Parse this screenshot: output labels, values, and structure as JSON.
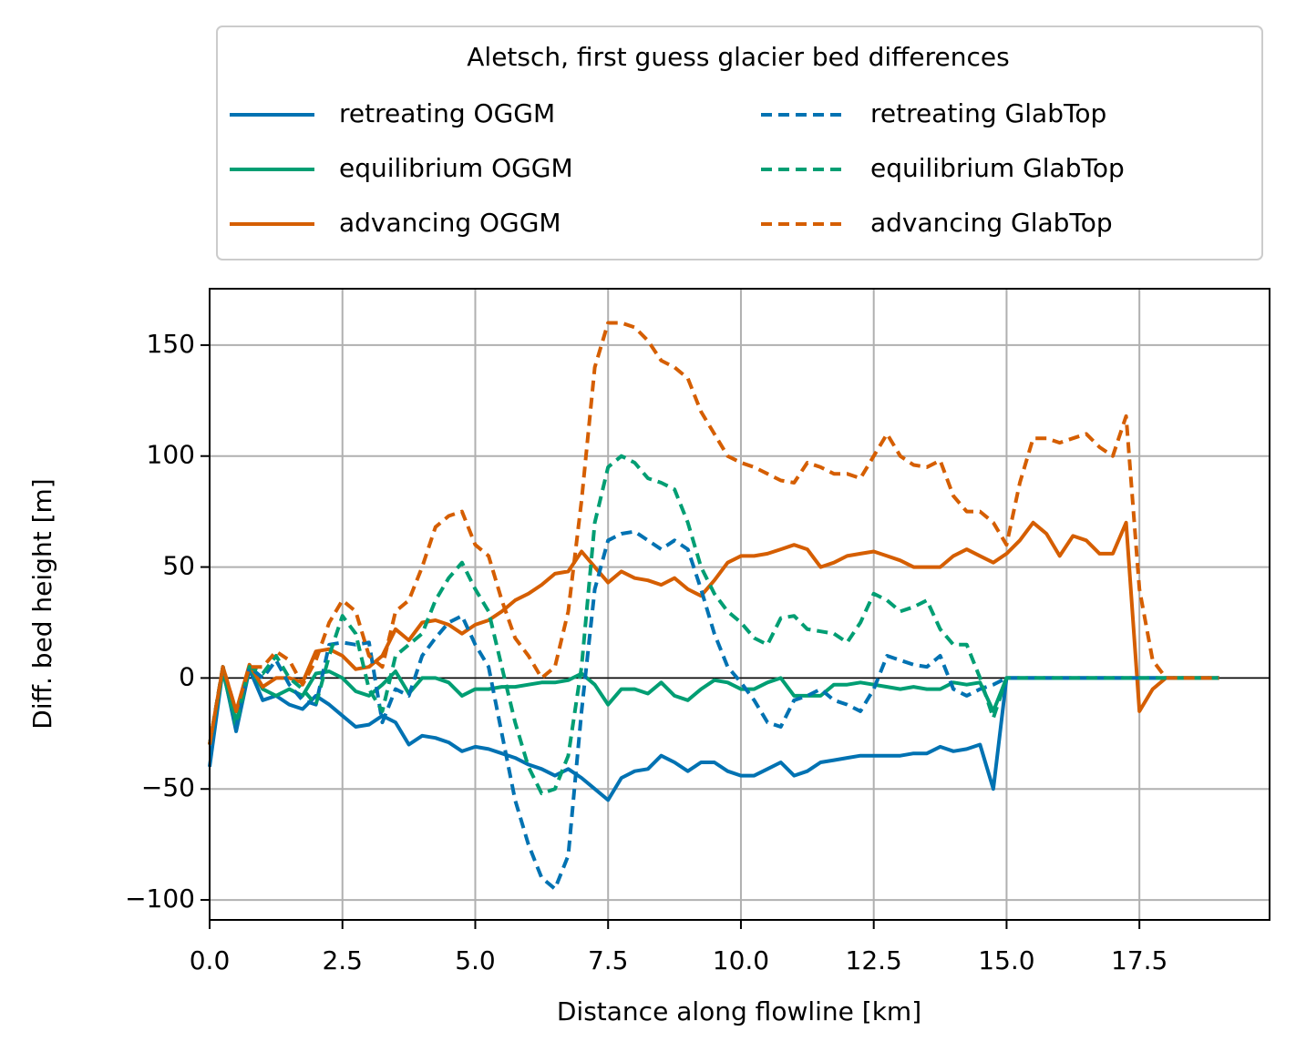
{
  "chart_data": {
    "type": "line",
    "legend_title": "Aletsch, first guess glacier bed differences",
    "legend": "top",
    "legend_columns": 2,
    "xlabel": "Distance along flowline [km]",
    "ylabel": "Diff. bed height [m]",
    "grid": true,
    "xlim": [
      0,
      19.95
    ],
    "ylim": [
      -109,
      175.4
    ],
    "xticks": [
      {
        "value": 0,
        "label": "0.0"
      },
      2.5,
      {
        "value": 5,
        "label": "5.0"
      },
      7.5,
      {
        "value": 10,
        "label": "10.0"
      },
      12.5,
      {
        "value": 15,
        "label": "15.0"
      },
      17.5
    ],
    "yticks": [
      {
        "value": -100,
        "label": "−100"
      },
      {
        "value": -50,
        "label": "−50"
      },
      0,
      50,
      100,
      150
    ],
    "x": [
      0,
      0.25,
      0.5,
      0.75,
      1,
      1.25,
      1.5,
      1.75,
      2,
      2.25,
      2.5,
      2.75,
      3,
      3.25,
      3.5,
      3.75,
      4,
      4.25,
      4.5,
      4.75,
      5,
      5.25,
      5.5,
      5.75,
      6,
      6.25,
      6.5,
      6.75,
      7,
      7.25,
      7.5,
      7.75,
      8,
      8.25,
      8.5,
      8.75,
      9,
      9.25,
      9.5,
      9.75,
      10,
      10.25,
      10.5,
      10.75,
      11,
      11.25,
      11.5,
      11.75,
      12,
      12.25,
      12.5,
      12.75,
      13,
      13.25,
      13.5,
      13.75,
      14,
      14.25,
      14.5,
      14.75,
      15,
      15.25,
      15.5,
      15.75,
      16,
      16.25,
      16.5,
      16.75,
      17,
      17.25,
      17.5,
      17.75,
      18,
      18.25,
      18.5,
      18.75,
      19
    ],
    "series": [
      {
        "name": "retreating OGGM",
        "color": "#0072b2",
        "linestyle": "solid",
        "values": [
          -40,
          4,
          -24,
          4,
          -10,
          -8,
          -12,
          -14,
          -8,
          -12,
          -17,
          -22,
          -21,
          -17,
          -20,
          -30,
          -26,
          -27,
          -29,
          -33,
          -31,
          -32,
          -34,
          -36,
          -39,
          -41,
          -44,
          -41,
          -45,
          -50,
          -55,
          -45,
          -42,
          -41,
          -35,
          -38,
          -42,
          -38,
          -38,
          -42,
          -44,
          -44,
          -41,
          -38,
          -44,
          -42,
          -38,
          -37,
          -36,
          -35,
          -35,
          -35,
          -35,
          -34,
          -34,
          -31,
          -33,
          -32,
          -30,
          -50,
          0,
          0,
          0,
          0,
          0,
          0,
          0,
          0,
          0,
          0,
          0,
          0,
          0,
          0,
          0,
          0,
          0
        ]
      },
      {
        "name": "equilibrium OGGM",
        "color": "#009e73",
        "linestyle": "solid",
        "values": [
          -30,
          3,
          -22,
          5,
          -5,
          -8,
          -5,
          -8,
          2,
          3,
          0,
          -6,
          -8,
          -3,
          3,
          -7,
          0,
          0,
          -2,
          -8,
          -5,
          -5,
          -4,
          -4,
          -3,
          -2,
          -2,
          -1,
          2,
          -3,
          -12,
          -5,
          -5,
          -7,
          -2,
          -8,
          -10,
          -5,
          -1,
          -2,
          -5,
          -5,
          -2,
          0,
          -8,
          -8,
          -8,
          -3,
          -3,
          -2,
          -3,
          -4,
          -5,
          -4,
          -5,
          -5,
          -2,
          -3,
          -2,
          -15,
          0,
          0,
          0,
          0,
          0,
          0,
          0,
          0,
          0,
          0,
          0,
          0,
          0,
          0,
          0,
          0,
          0
        ]
      },
      {
        "name": "advancing OGGM",
        "color": "#d55e00",
        "linestyle": "solid",
        "values": [
          -30,
          5,
          -15,
          6,
          -4,
          0,
          0,
          -2,
          12,
          13,
          10,
          4,
          5,
          10,
          22,
          17,
          25,
          26,
          24,
          20,
          24,
          26,
          30,
          35,
          38,
          42,
          47,
          48,
          57,
          50,
          43,
          48,
          45,
          44,
          42,
          45,
          40,
          37,
          44,
          52,
          55,
          55,
          56,
          58,
          60,
          58,
          50,
          52,
          55,
          56,
          57,
          55,
          53,
          50,
          50,
          50,
          55,
          58,
          55,
          52,
          56,
          62,
          70,
          65,
          55,
          64,
          62,
          56,
          56,
          70,
          -15,
          -5,
          0,
          0,
          0,
          0,
          0
        ]
      },
      {
        "name": "retreating GlabTop",
        "color": "#0072b2",
        "linestyle": "dashed",
        "values": [
          -30,
          5,
          -22,
          5,
          0,
          8,
          -3,
          -10,
          -12,
          15,
          16,
          15,
          16,
          -20,
          -5,
          -8,
          10,
          18,
          25,
          28,
          15,
          5,
          -25,
          -55,
          -75,
          -90,
          -95,
          -80,
          -15,
          40,
          62,
          65,
          66,
          62,
          58,
          62,
          58,
          40,
          20,
          5,
          -2,
          -10,
          -20,
          -22,
          -10,
          -8,
          -5,
          -10,
          -12,
          -15,
          -5,
          10,
          8,
          6,
          5,
          10,
          -5,
          -8,
          -5,
          -3,
          0,
          0,
          0,
          0,
          0,
          0,
          0,
          0,
          0,
          0,
          0,
          0,
          0,
          0,
          0,
          0,
          0
        ]
      },
      {
        "name": "equilibrium GlabTop",
        "color": "#009e73",
        "linestyle": "dashed",
        "values": [
          -30,
          5,
          -20,
          5,
          2,
          10,
          0,
          -5,
          -12,
          10,
          28,
          20,
          -5,
          -15,
          10,
          15,
          20,
          35,
          45,
          52,
          40,
          30,
          5,
          -20,
          -40,
          -52,
          -50,
          -35,
          5,
          70,
          95,
          100,
          97,
          90,
          88,
          85,
          70,
          50,
          38,
          30,
          25,
          18,
          15,
          27,
          28,
          22,
          21,
          20,
          16,
          25,
          38,
          35,
          30,
          32,
          35,
          22,
          15,
          15,
          0,
          -18,
          0,
          0,
          0,
          0,
          0,
          0,
          0,
          0,
          0,
          0,
          0,
          0,
          0,
          0,
          0,
          0,
          0
        ]
      },
      {
        "name": "advancing GlabTop",
        "color": "#d55e00",
        "linestyle": "dashed",
        "values": [
          -30,
          5,
          -15,
          5,
          5,
          12,
          8,
          -3,
          8,
          25,
          35,
          30,
          10,
          5,
          30,
          35,
          50,
          68,
          73,
          75,
          60,
          55,
          35,
          18,
          10,
          0,
          5,
          30,
          80,
          140,
          160,
          160,
          158,
          152,
          143,
          140,
          135,
          120,
          110,
          100,
          97,
          95,
          92,
          89,
          88,
          97,
          95,
          92,
          92,
          90,
          100,
          110,
          100,
          96,
          95,
          98,
          82,
          75,
          75,
          70,
          60,
          88,
          108,
          108,
          106,
          108,
          110,
          104,
          100,
          118,
          40,
          8,
          0,
          0,
          0,
          0,
          0
        ]
      }
    ]
  }
}
